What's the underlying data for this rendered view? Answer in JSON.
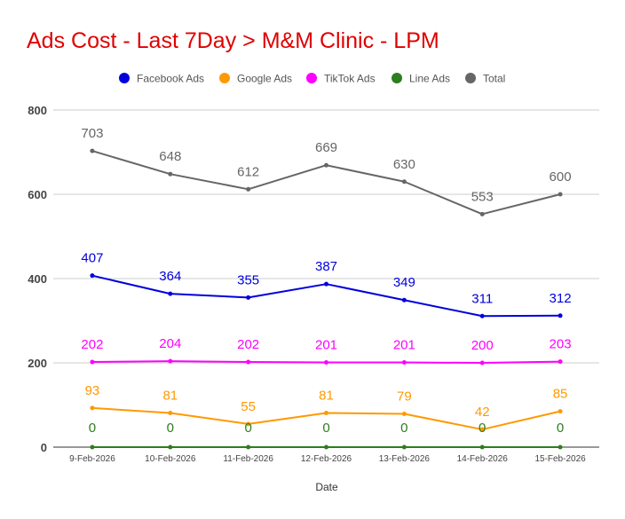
{
  "chart_data": {
    "type": "line",
    "title": "Ads Cost - Last 7Day > M&M Clinic - LPM",
    "title_color": "#e00000",
    "xlabel": "Date",
    "ylabel": "",
    "ylim": [
      0,
      800
    ],
    "yticks": [
      0,
      200,
      400,
      600,
      800
    ],
    "grid": true,
    "legend_position": "top-center",
    "categories": [
      "9-Feb-2026",
      "10-Feb-2026",
      "11-Feb-2026",
      "12-Feb-2026",
      "13-Feb-2026",
      "14-Feb-2026",
      "15-Feb-2026"
    ],
    "series": [
      {
        "name": "Facebook Ads",
        "color": "#0000dd",
        "values": [
          407,
          364,
          355,
          387,
          349,
          311,
          312
        ]
      },
      {
        "name": "Google Ads",
        "color": "#ff9900",
        "values": [
          93,
          81,
          55,
          81,
          79,
          42,
          85
        ]
      },
      {
        "name": "TikTok Ads",
        "color": "#ff00ff",
        "values": [
          202,
          204,
          202,
          201,
          201,
          200,
          203
        ]
      },
      {
        "name": "Line Ads",
        "color": "#2e7d1e",
        "values": [
          0,
          0,
          0,
          0,
          0,
          0,
          0
        ]
      },
      {
        "name": "Total",
        "color": "#666666",
        "values": [
          703,
          648,
          612,
          669,
          630,
          553,
          600
        ]
      }
    ]
  }
}
